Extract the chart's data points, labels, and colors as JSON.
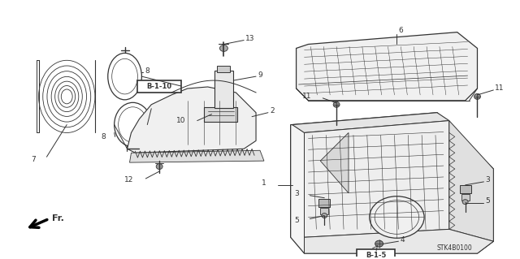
{
  "bg_color": "#ffffff",
  "fig_width": 6.4,
  "fig_height": 3.19,
  "dpi": 100,
  "callout_B110": "B-1-10",
  "callout_B15": "B-1-5",
  "part_code": "STK4B0100"
}
